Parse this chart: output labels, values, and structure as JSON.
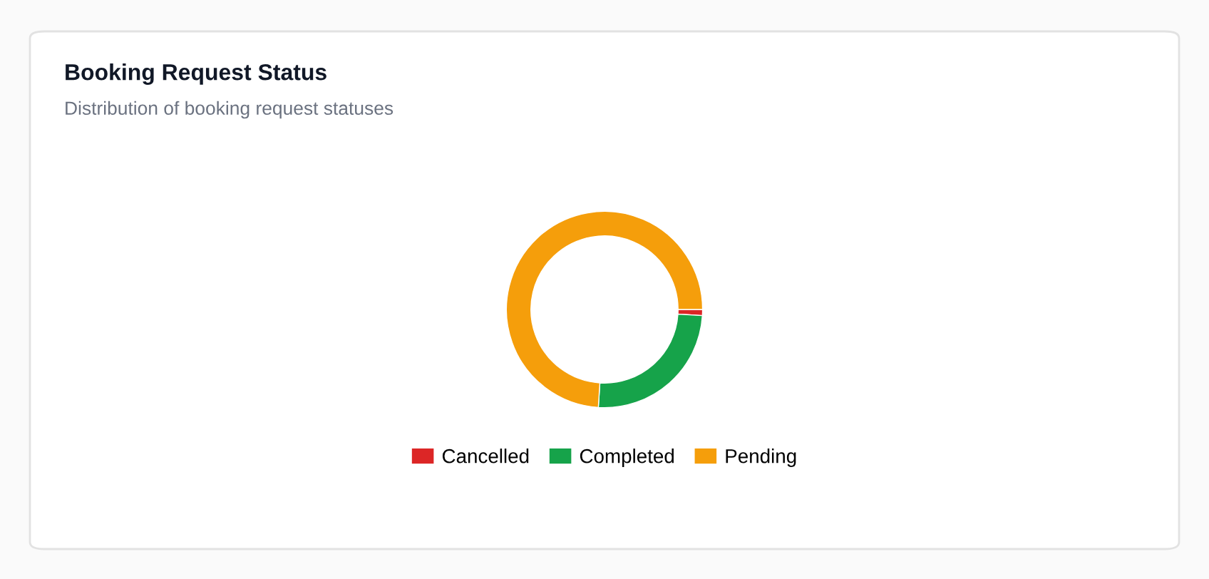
{
  "chart_data": {
    "type": "donut",
    "title": "Booking Request Status",
    "subtitle": "Distribution of booking request statuses",
    "categories": [
      "Cancelled",
      "Completed",
      "Pending"
    ],
    "values": [
      1,
      25,
      74
    ],
    "colors": [
      "#dc2626",
      "#16a34a",
      "#f59e0b"
    ],
    "legend": "bottom"
  }
}
